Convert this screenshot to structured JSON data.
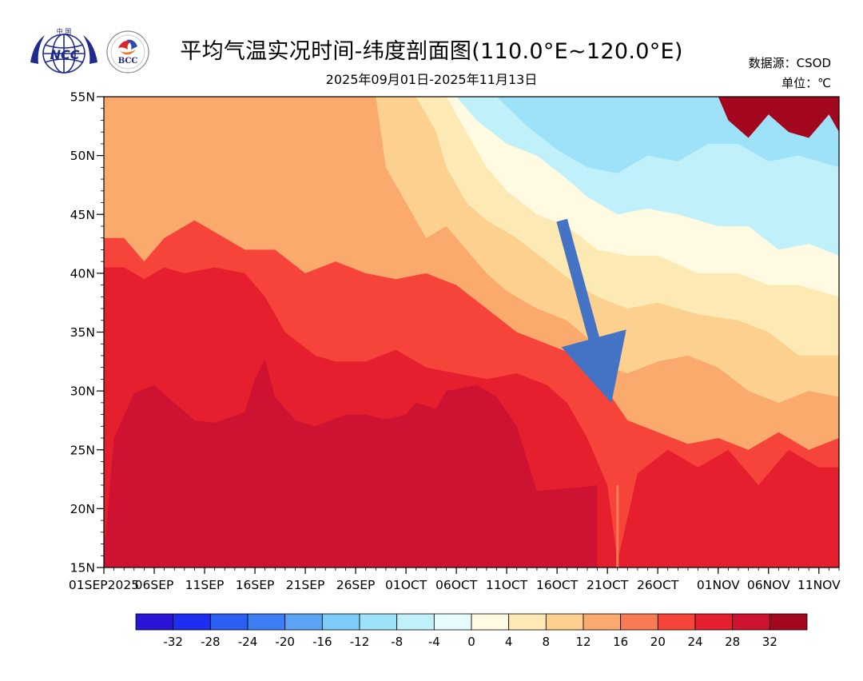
{
  "header": {
    "title": "平均气温实况时间-纬度剖面图(110.0°E~120.0°E)",
    "subtitle": "2025年09月01日-2025年11月13日",
    "source": "数据源：CSOD",
    "unit": "单位：℃"
  },
  "logos": {
    "left": {
      "name": "ncc-logo",
      "text": "NCC",
      "top_text": "中 国"
    },
    "right": {
      "name": "bcc-logo",
      "text": "BCC"
    }
  },
  "chart_data": {
    "type": "heatmap",
    "title": "平均气温实况时间-纬度剖面图(110.0°E~120.0°E)",
    "subtitle": "2025年09月01日-2025年11月13日",
    "x_start": "2025-09-01",
    "x_end": "2025-11-13",
    "x_ticks": [
      {
        "date": "2025-09-01",
        "label": "01SEP2025"
      },
      {
        "date": "2025-09-06",
        "label": "06SEP"
      },
      {
        "date": "2025-09-11",
        "label": "11SEP"
      },
      {
        "date": "2025-09-16",
        "label": "16SEP"
      },
      {
        "date": "2025-09-21",
        "label": "21SEP"
      },
      {
        "date": "2025-09-26",
        "label": "26SEP"
      },
      {
        "date": "2025-10-01",
        "label": "01OCT"
      },
      {
        "date": "2025-10-06",
        "label": "06OCT"
      },
      {
        "date": "2025-10-11",
        "label": "11OCT"
      },
      {
        "date": "2025-10-16",
        "label": "16OCT"
      },
      {
        "date": "2025-10-21",
        "label": "21OCT"
      },
      {
        "date": "2025-10-26",
        "label": "26OCT"
      },
      {
        "date": "2025-11-01",
        "label": "01NOV"
      },
      {
        "date": "2025-11-06",
        "label": "06NOV"
      },
      {
        "date": "2025-11-11",
        "label": "11NOV"
      }
    ],
    "y_ticks": [
      {
        "lat": 15,
        "label": "15N"
      },
      {
        "lat": 20,
        "label": "20N"
      },
      {
        "lat": 25,
        "label": "25N"
      },
      {
        "lat": 30,
        "label": "30N"
      },
      {
        "lat": 35,
        "label": "35N"
      },
      {
        "lat": 40,
        "label": "40N"
      },
      {
        "lat": 45,
        "label": "45N"
      },
      {
        "lat": 50,
        "label": "50N"
      },
      {
        "lat": 55,
        "label": "55N"
      }
    ],
    "ylim": [
      15,
      55
    ],
    "colorbar": {
      "levels": [
        -32,
        -28,
        -24,
        -20,
        -16,
        -12,
        -8,
        -4,
        0,
        4,
        8,
        12,
        16,
        20,
        24,
        28,
        32
      ],
      "labels": [
        "-32",
        "-28",
        "-24",
        "-20",
        "-16",
        "-12",
        "-8",
        "-4",
        "0",
        "4",
        "8",
        "12",
        "16",
        "20",
        "24",
        "28",
        "32"
      ],
      "colors": [
        "#2a14d6",
        "#1e2ef0",
        "#2b5ef2",
        "#3d7ef4",
        "#5aa3f5",
        "#7dcbf7",
        "#9ee2f9",
        "#c0f0fa",
        "#e6fbfd",
        "#fffbe2",
        "#fde9b4",
        "#fcd08e",
        "#fbaa6e",
        "#f87a53",
        "#f6443a",
        "#e61f2e",
        "#ce1231",
        "#a3061f"
      ]
    },
    "contours": [
      {
        "level": 28,
        "color": "#ce1231",
        "boundary": [
          [
            "2025-09-01",
            16
          ],
          [
            "2025-09-02",
            26
          ],
          [
            "2025-09-04",
            29.8
          ],
          [
            "2025-09-06",
            30.5
          ],
          [
            "2025-09-08",
            29
          ],
          [
            "2025-09-10",
            27.5
          ],
          [
            "2025-09-12",
            27.3
          ],
          [
            "2025-09-15",
            28.2
          ],
          [
            "2025-09-16",
            31
          ],
          [
            "2025-09-17",
            32.7
          ],
          [
            "2025-09-18",
            29.5
          ],
          [
            "2025-09-20",
            27.5
          ],
          [
            "2025-09-22",
            27
          ],
          [
            "2025-09-25",
            28
          ],
          [
            "2025-09-27",
            28
          ],
          [
            "2025-09-29",
            27.6
          ],
          [
            "2025-10-01",
            28
          ],
          [
            "2025-10-02",
            29
          ],
          [
            "2025-10-04",
            28.5
          ],
          [
            "2025-10-05",
            30
          ],
          [
            "2025-10-08",
            30.5
          ],
          [
            "2025-10-10",
            29.5
          ],
          [
            "2025-10-12",
            27
          ],
          [
            "2025-10-14",
            21.5
          ],
          [
            "2025-10-18",
            21.8
          ],
          [
            "2025-10-20",
            22
          ],
          [
            "2025-10-20",
            15
          ]
        ]
      },
      {
        "level": 24,
        "color": "#e61f2e",
        "boundary": [
          [
            "2025-09-01",
            40.5
          ],
          [
            "2025-09-03",
            40.5
          ],
          [
            "2025-09-05",
            39.5
          ],
          [
            "2025-09-07",
            40.5
          ],
          [
            "2025-09-09",
            40
          ],
          [
            "2025-09-12",
            40.5
          ],
          [
            "2025-09-15",
            40
          ],
          [
            "2025-09-17",
            38
          ],
          [
            "2025-09-19",
            35
          ],
          [
            "2025-09-22",
            33
          ],
          [
            "2025-09-24",
            32.5
          ],
          [
            "2025-09-27",
            32.5
          ],
          [
            "2025-09-30",
            33.5
          ],
          [
            "2025-10-03",
            32
          ],
          [
            "2025-10-06",
            31.5
          ],
          [
            "2025-10-09",
            31
          ],
          [
            "2025-10-12",
            31.5
          ],
          [
            "2025-10-15",
            30.5
          ],
          [
            "2025-10-17",
            29
          ],
          [
            "2025-10-19",
            26
          ],
          [
            "2025-10-21",
            22
          ],
          [
            "2025-10-22",
            15.5
          ],
          [
            "2025-10-24",
            23
          ],
          [
            "2025-10-27",
            25
          ],
          [
            "2025-10-30",
            23.5
          ],
          [
            "2025-11-02",
            25
          ],
          [
            "2025-11-05",
            22
          ],
          [
            "2025-11-08",
            25
          ],
          [
            "2025-11-11",
            23.5
          ],
          [
            "2025-11-13",
            23.5
          ],
          [
            "2025-11-13",
            15
          ]
        ]
      },
      {
        "level": 20,
        "color": "#f6443a",
        "boundary": [
          [
            "2025-09-01",
            43
          ],
          [
            "2025-09-03",
            43
          ],
          [
            "2025-09-05",
            41
          ],
          [
            "2025-09-07",
            43
          ],
          [
            "2025-09-10",
            44.5
          ],
          [
            "2025-09-12",
            43.5
          ],
          [
            "2025-09-15",
            42
          ],
          [
            "2025-09-18",
            42
          ],
          [
            "2025-09-21",
            40
          ],
          [
            "2025-09-24",
            41
          ],
          [
            "2025-09-27",
            40
          ],
          [
            "2025-09-30",
            39.5
          ],
          [
            "2025-10-03",
            40
          ],
          [
            "2025-10-06",
            39
          ],
          [
            "2025-10-09",
            37
          ],
          [
            "2025-10-12",
            35
          ],
          [
            "2025-10-15",
            34
          ],
          [
            "2025-10-18",
            33
          ],
          [
            "2025-10-20",
            31
          ],
          [
            "2025-10-21",
            30
          ],
          [
            "2025-10-23",
            27.5
          ],
          [
            "2025-10-26",
            26.5
          ],
          [
            "2025-10-29",
            25.5
          ],
          [
            "2025-11-01",
            26
          ],
          [
            "2025-11-04",
            25
          ],
          [
            "2025-11-07",
            26.5
          ],
          [
            "2025-11-10",
            25
          ],
          [
            "2025-11-13",
            26
          ],
          [
            "2025-11-13",
            15
          ]
        ]
      },
      {
        "level": 16,
        "color": "#fbaa6e",
        "boundary": [
          [
            "2025-09-01",
            55
          ],
          [
            "2025-09-28",
            55
          ],
          [
            "2025-09-29",
            49
          ],
          [
            "2025-10-01",
            46
          ],
          [
            "2025-10-03",
            43
          ],
          [
            "2025-10-05",
            44
          ],
          [
            "2025-10-07",
            42
          ],
          [
            "2025-10-09",
            40
          ],
          [
            "2025-10-11",
            38.5
          ],
          [
            "2025-10-14",
            37
          ],
          [
            "2025-10-17",
            36
          ],
          [
            "2025-10-19",
            34.5
          ],
          [
            "2025-10-21",
            32
          ],
          [
            "2025-10-23",
            31.5
          ],
          [
            "2025-10-26",
            32.5
          ],
          [
            "2025-10-29",
            33
          ],
          [
            "2025-11-01",
            32
          ],
          [
            "2025-11-04",
            30
          ],
          [
            "2025-11-07",
            29
          ],
          [
            "2025-11-10",
            30
          ],
          [
            "2025-11-13",
            29.5
          ],
          [
            "2025-11-13",
            15
          ]
        ]
      },
      {
        "level": 12,
        "color": "#fcd08e",
        "boundary": [
          [
            "2025-09-01",
            55
          ],
          [
            "2025-10-02",
            55
          ],
          [
            "2025-10-04",
            52
          ],
          [
            "2025-10-05",
            49
          ],
          [
            "2025-10-07",
            46
          ],
          [
            "2025-10-09",
            44.5
          ],
          [
            "2025-10-12",
            43
          ],
          [
            "2025-10-15",
            41
          ],
          [
            "2025-10-18",
            39
          ],
          [
            "2025-10-20",
            38
          ],
          [
            "2025-10-23",
            37
          ],
          [
            "2025-10-26",
            37.5
          ],
          [
            "2025-10-30",
            36.5
          ],
          [
            "2025-11-03",
            36
          ],
          [
            "2025-11-06",
            35
          ],
          [
            "2025-11-09",
            33
          ],
          [
            "2025-11-13",
            33
          ],
          [
            "2025-11-13",
            15
          ]
        ]
      },
      {
        "level": 8,
        "color": "#fde9b4",
        "boundary": [
          [
            "2025-09-01",
            55
          ],
          [
            "2025-10-05",
            55
          ],
          [
            "2025-10-07",
            52
          ],
          [
            "2025-10-09",
            49
          ],
          [
            "2025-10-11",
            47
          ],
          [
            "2025-10-14",
            45
          ],
          [
            "2025-10-17",
            44
          ],
          [
            "2025-10-20",
            42
          ],
          [
            "2025-10-23",
            41.5
          ],
          [
            "2025-10-26",
            41.5
          ],
          [
            "2025-10-30",
            40
          ],
          [
            "2025-11-03",
            40
          ],
          [
            "2025-11-06",
            39
          ],
          [
            "2025-11-09",
            39
          ],
          [
            "2025-11-13",
            38
          ],
          [
            "2025-11-13",
            15
          ]
        ]
      },
      {
        "level": 4,
        "color": "#fffbe2",
        "boundary": [
          [
            "2025-09-01",
            55
          ],
          [
            "2025-10-06",
            55
          ],
          [
            "2025-10-08",
            53
          ],
          [
            "2025-10-11",
            51
          ],
          [
            "2025-10-14",
            50
          ],
          [
            "2025-10-17",
            48
          ],
          [
            "2025-10-19",
            46.5
          ],
          [
            "2025-10-22",
            45
          ],
          [
            "2025-10-25",
            45.5
          ],
          [
            "2025-10-28",
            45
          ],
          [
            "2025-11-01",
            44
          ],
          [
            "2025-11-04",
            44
          ],
          [
            "2025-11-07",
            42
          ],
          [
            "2025-11-10",
            42.5
          ],
          [
            "2025-11-13",
            41.5
          ],
          [
            "2025-11-13",
            15
          ]
        ]
      },
      {
        "level": 0,
        "color": "#c0f0fa",
        "boundary": [
          [
            "2025-09-01",
            55
          ],
          [
            "2025-10-10",
            55
          ],
          [
            "2025-10-13",
            52.5
          ],
          [
            "2025-10-16",
            50.5
          ],
          [
            "2025-10-19",
            49
          ],
          [
            "2025-10-22",
            48.5
          ],
          [
            "2025-10-25",
            50
          ],
          [
            "2025-10-28",
            49.5
          ],
          [
            "2025-10-31",
            51
          ],
          [
            "2025-11-03",
            51
          ],
          [
            "2025-11-06",
            49.5
          ],
          [
            "2025-11-09",
            50
          ],
          [
            "2025-11-13",
            49
          ],
          [
            "2025-11-13",
            15
          ]
        ]
      },
      {
        "level": -4,
        "color": "#9ee2f9",
        "boundary": [
          [
            "2025-09-01",
            55
          ],
          [
            "2025-11-01",
            55
          ],
          [
            "2025-11-02",
            53
          ],
          [
            "2025-11-04",
            51.5
          ],
          [
            "2025-11-06",
            53.5
          ],
          [
            "2025-11-08",
            52
          ],
          [
            "2025-11-10",
            51.5
          ],
          [
            "2025-11-12",
            53.5
          ],
          [
            "2025-11-13",
            52
          ],
          [
            "2025-11-13",
            15
          ]
        ]
      }
    ],
    "annotation": {
      "type": "arrow",
      "from": [
        "2025-10-16",
        44.5
      ],
      "to": [
        "2025-10-21",
        30.5
      ],
      "color": "#4472c4"
    }
  }
}
